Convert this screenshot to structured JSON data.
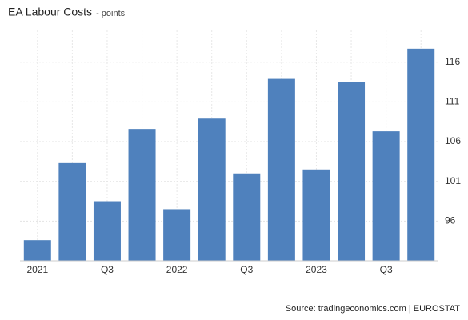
{
  "chart_data": {
    "type": "bar",
    "title": "EA Labour Costs",
    "subtitle": "- points",
    "categories": [
      "2021",
      null,
      "Q3",
      null,
      "2022",
      null,
      "Q3",
      null,
      "2023",
      null,
      "Q3",
      null
    ],
    "values": [
      93.6,
      103.3,
      98.5,
      107.6,
      97.5,
      108.9,
      102.0,
      113.9,
      102.5,
      113.5,
      107.3,
      117.7
    ],
    "color": "#4f81bd",
    "ylim": [
      91,
      120
    ],
    "yticks": [
      96,
      101,
      106,
      111,
      116
    ],
    "grid": true,
    "source": "Source: tradingeconomics.com | EUROSTAT"
  }
}
